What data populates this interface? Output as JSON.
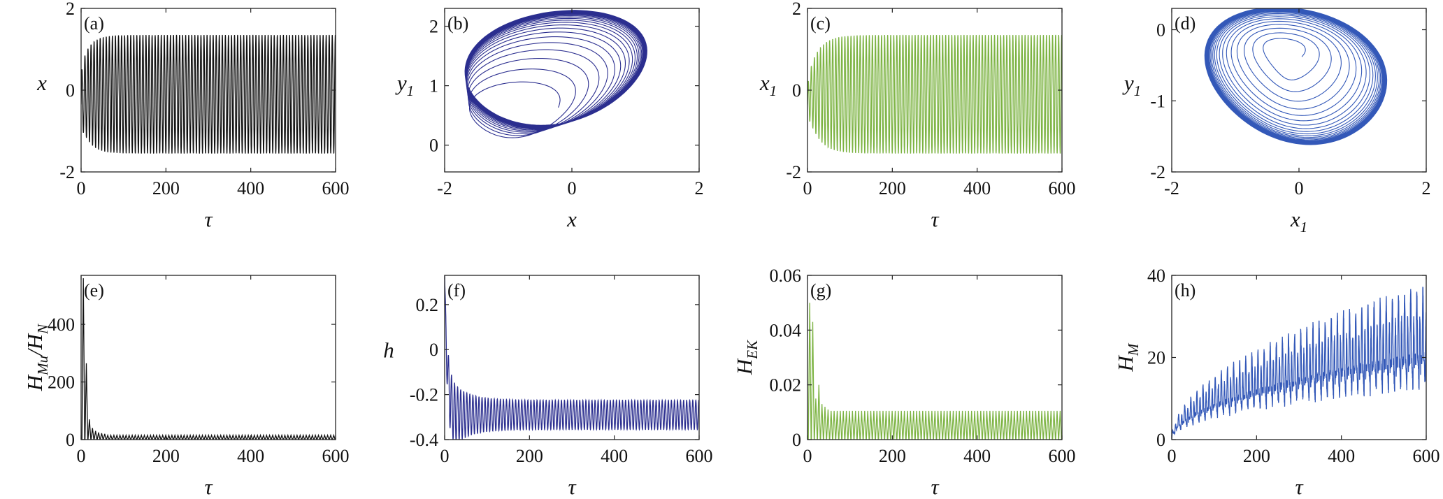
{
  "colors": {
    "black": "#111111",
    "navy": "#2b2e8f",
    "green": "#7cb342",
    "blue": "#3358b8"
  },
  "chart_data": [
    {
      "panel": "(a)",
      "type": "line",
      "color_key": "black",
      "xlabel": "τ",
      "ylabel": "x",
      "ylabel_sub": "",
      "xlim": [
        0,
        600
      ],
      "ylim": [
        -2,
        2
      ],
      "xticks": [
        "0",
        "200",
        "400",
        "600"
      ],
      "yticks": [
        "-2",
        "0",
        "2"
      ],
      "series": [
        {
          "name": "x(τ)",
          "kind": "osc",
          "t0": 0,
          "t1": 600,
          "center": -0.1,
          "amplitude_final": 1.45,
          "amplitude_initial": 0.7,
          "rise": 20,
          "period": 7.2
        }
      ]
    },
    {
      "panel": "(b)",
      "type": "line",
      "color_key": "navy",
      "xlabel": "x",
      "ylabel": "y",
      "ylabel_sub": "1",
      "xlim": [
        -2,
        2
      ],
      "ylim": [
        -0.45,
        2.3
      ],
      "xticks": [
        "-2",
        "0",
        "2"
      ],
      "yticks": [
        "0",
        "1",
        "2"
      ],
      "series": [
        {
          "name": "phase portrait (x, y1)",
          "kind": "orbit",
          "cx": -0.25,
          "cy": 1.3,
          "rx": 1.45,
          "ry": 0.95,
          "tilt": 0.12,
          "rx0": 0.7,
          "ry0": 0.45,
          "cx0": -0.9,
          "cy0": 0.55
        }
      ]
    },
    {
      "panel": "(c)",
      "type": "line",
      "color_key": "green",
      "xlabel": "τ",
      "ylabel": "x",
      "ylabel_sub": "1",
      "xlim": [
        0,
        600
      ],
      "ylim": [
        -2,
        2
      ],
      "xticks": [
        "0",
        "200",
        "400",
        "600"
      ],
      "yticks": [
        "-2",
        "0",
        "2"
      ],
      "series": [
        {
          "name": "x1(τ)",
          "kind": "osc",
          "t0": 0,
          "t1": 600,
          "center": -0.1,
          "amplitude_final": 1.45,
          "amplitude_initial": 0.4,
          "rise": 25,
          "period": 7.2
        }
      ]
    },
    {
      "panel": "(d)",
      "type": "line",
      "color_key": "blue",
      "xlabel": "x",
      "xlabel_sub": "1",
      "ylabel": "y",
      "ylabel_sub": "1",
      "xlim": [
        -2,
        2
      ],
      "ylim": [
        -2,
        0.3
      ],
      "xticks": [
        "-2",
        "0",
        "2"
      ],
      "yticks": [
        "-2",
        "-1",
        "0"
      ],
      "series": [
        {
          "name": "phase portrait (x1, y1)",
          "kind": "orbit",
          "cx": -0.05,
          "cy": -0.65,
          "rx": 1.45,
          "ry": 0.95,
          "tilt": -0.12,
          "rx0": 0.25,
          "ry0": 0.2,
          "cx0": -0.2,
          "cy0": -0.35
        }
      ]
    },
    {
      "panel": "(e)",
      "type": "line",
      "color_key": "black",
      "xlabel": "τ",
      "ylabel": "H",
      "ylabel_sub": "Mu",
      "ylabel_tail": "/H",
      "ylabel_sub2": "N",
      "xlim": [
        0,
        600
      ],
      "ylim": [
        0,
        570
      ],
      "xticks": [
        "0",
        "200",
        "400",
        "600"
      ],
      "yticks": [
        "0",
        "200",
        "400"
      ],
      "series": [
        {
          "name": "HMu/HN",
          "kind": "spikes",
          "period": 7.2,
          "base": 0,
          "peak_final": 15,
          "first_peaks": [
            560,
            265,
            70,
            40,
            30,
            25,
            22,
            20
          ]
        }
      ]
    },
    {
      "panel": "(f)",
      "type": "line",
      "color_key": "navy",
      "xlabel": "τ",
      "ylabel": "h",
      "ylabel_sub": "",
      "xlim": [
        0,
        600
      ],
      "ylim": [
        -0.4,
        0.33
      ],
      "xticks": [
        "0",
        "200",
        "400",
        "600"
      ],
      "yticks": [
        "-0.4",
        "-0.2",
        "0",
        "0.2"
      ],
      "series": [
        {
          "name": "h(τ)",
          "kind": "decay",
          "t0": 0,
          "t1": 600,
          "start": 0.33,
          "center": -0.29,
          "amplitude_final": 0.065,
          "amplitude_initial": 0.12,
          "tau_decay": 6,
          "period": 7.2
        }
      ]
    },
    {
      "panel": "(g)",
      "type": "line",
      "color_key": "green",
      "xlabel": "τ",
      "ylabel": "H",
      "ylabel_sub": "EK",
      "xlim": [
        0,
        600
      ],
      "ylim": [
        0,
        0.06
      ],
      "xticks": [
        "0",
        "200",
        "400",
        "600"
      ],
      "yticks": [
        "0",
        "0.02",
        "0.04",
        "0.06"
      ],
      "series": [
        {
          "name": "HEK(τ)",
          "kind": "spikes",
          "period": 7.2,
          "base": 0,
          "peak_final": 0.0105,
          "first_peaks": [
            0.05,
            0.043,
            0.015,
            0.02,
            0.013,
            0.012,
            0.011
          ]
        }
      ]
    },
    {
      "panel": "(h)",
      "type": "line",
      "color_key": "blue",
      "xlabel": "τ",
      "ylabel": "H",
      "ylabel_sub": "M",
      "xlim": [
        0,
        600
      ],
      "ylim": [
        0,
        40
      ],
      "xticks": [
        "0",
        "200",
        "400",
        "600"
      ],
      "yticks": [
        "0",
        "20",
        "40"
      ],
      "series": [
        {
          "name": "HM(τ)",
          "kind": "growth",
          "t0": 0,
          "t1": 600,
          "mean_final": 20,
          "upper_final": 37,
          "lower_final": 12,
          "period": 7.2
        }
      ]
    }
  ]
}
